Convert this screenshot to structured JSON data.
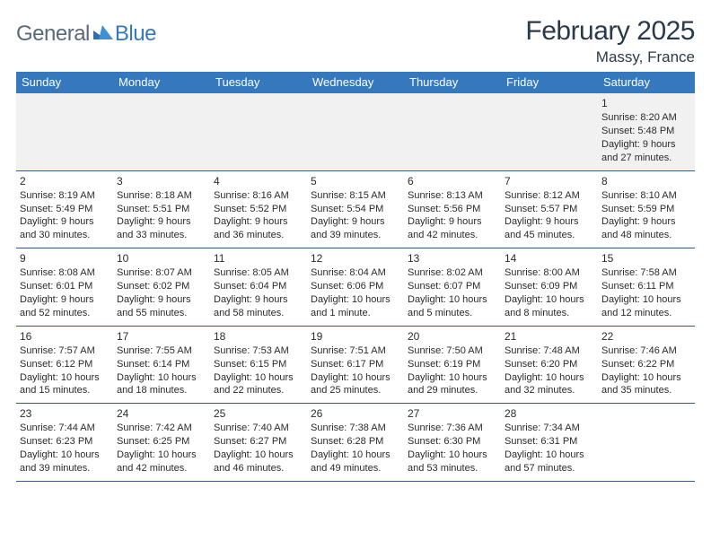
{
  "logo": {
    "part1": "General",
    "part2": "Blue"
  },
  "title": "February 2025",
  "location": "Massy, France",
  "colors": {
    "header_bg": "#3578bd",
    "header_text": "#ffffff",
    "row_border": "#3a5a8a",
    "first_row_bg": "#f1f1f1",
    "text": "#2a2a2a",
    "logo_gray": "#5a6a78",
    "logo_blue": "#3578bd"
  },
  "day_headers": [
    "Sunday",
    "Monday",
    "Tuesday",
    "Wednesday",
    "Thursday",
    "Friday",
    "Saturday"
  ],
  "weeks": [
    [
      null,
      null,
      null,
      null,
      null,
      null,
      {
        "n": "1",
        "sunrise": "Sunrise: 8:20 AM",
        "sunset": "Sunset: 5:48 PM",
        "day1": "Daylight: 9 hours",
        "day2": "and 27 minutes."
      }
    ],
    [
      {
        "n": "2",
        "sunrise": "Sunrise: 8:19 AM",
        "sunset": "Sunset: 5:49 PM",
        "day1": "Daylight: 9 hours",
        "day2": "and 30 minutes."
      },
      {
        "n": "3",
        "sunrise": "Sunrise: 8:18 AM",
        "sunset": "Sunset: 5:51 PM",
        "day1": "Daylight: 9 hours",
        "day2": "and 33 minutes."
      },
      {
        "n": "4",
        "sunrise": "Sunrise: 8:16 AM",
        "sunset": "Sunset: 5:52 PM",
        "day1": "Daylight: 9 hours",
        "day2": "and 36 minutes."
      },
      {
        "n": "5",
        "sunrise": "Sunrise: 8:15 AM",
        "sunset": "Sunset: 5:54 PM",
        "day1": "Daylight: 9 hours",
        "day2": "and 39 minutes."
      },
      {
        "n": "6",
        "sunrise": "Sunrise: 8:13 AM",
        "sunset": "Sunset: 5:56 PM",
        "day1": "Daylight: 9 hours",
        "day2": "and 42 minutes."
      },
      {
        "n": "7",
        "sunrise": "Sunrise: 8:12 AM",
        "sunset": "Sunset: 5:57 PM",
        "day1": "Daylight: 9 hours",
        "day2": "and 45 minutes."
      },
      {
        "n": "8",
        "sunrise": "Sunrise: 8:10 AM",
        "sunset": "Sunset: 5:59 PM",
        "day1": "Daylight: 9 hours",
        "day2": "and 48 minutes."
      }
    ],
    [
      {
        "n": "9",
        "sunrise": "Sunrise: 8:08 AM",
        "sunset": "Sunset: 6:01 PM",
        "day1": "Daylight: 9 hours",
        "day2": "and 52 minutes."
      },
      {
        "n": "10",
        "sunrise": "Sunrise: 8:07 AM",
        "sunset": "Sunset: 6:02 PM",
        "day1": "Daylight: 9 hours",
        "day2": "and 55 minutes."
      },
      {
        "n": "11",
        "sunrise": "Sunrise: 8:05 AM",
        "sunset": "Sunset: 6:04 PM",
        "day1": "Daylight: 9 hours",
        "day2": "and 58 minutes."
      },
      {
        "n": "12",
        "sunrise": "Sunrise: 8:04 AM",
        "sunset": "Sunset: 6:06 PM",
        "day1": "Daylight: 10 hours",
        "day2": "and 1 minute."
      },
      {
        "n": "13",
        "sunrise": "Sunrise: 8:02 AM",
        "sunset": "Sunset: 6:07 PM",
        "day1": "Daylight: 10 hours",
        "day2": "and 5 minutes."
      },
      {
        "n": "14",
        "sunrise": "Sunrise: 8:00 AM",
        "sunset": "Sunset: 6:09 PM",
        "day1": "Daylight: 10 hours",
        "day2": "and 8 minutes."
      },
      {
        "n": "15",
        "sunrise": "Sunrise: 7:58 AM",
        "sunset": "Sunset: 6:11 PM",
        "day1": "Daylight: 10 hours",
        "day2": "and 12 minutes."
      }
    ],
    [
      {
        "n": "16",
        "sunrise": "Sunrise: 7:57 AM",
        "sunset": "Sunset: 6:12 PM",
        "day1": "Daylight: 10 hours",
        "day2": "and 15 minutes."
      },
      {
        "n": "17",
        "sunrise": "Sunrise: 7:55 AM",
        "sunset": "Sunset: 6:14 PM",
        "day1": "Daylight: 10 hours",
        "day2": "and 18 minutes."
      },
      {
        "n": "18",
        "sunrise": "Sunrise: 7:53 AM",
        "sunset": "Sunset: 6:15 PM",
        "day1": "Daylight: 10 hours",
        "day2": "and 22 minutes."
      },
      {
        "n": "19",
        "sunrise": "Sunrise: 7:51 AM",
        "sunset": "Sunset: 6:17 PM",
        "day1": "Daylight: 10 hours",
        "day2": "and 25 minutes."
      },
      {
        "n": "20",
        "sunrise": "Sunrise: 7:50 AM",
        "sunset": "Sunset: 6:19 PM",
        "day1": "Daylight: 10 hours",
        "day2": "and 29 minutes."
      },
      {
        "n": "21",
        "sunrise": "Sunrise: 7:48 AM",
        "sunset": "Sunset: 6:20 PM",
        "day1": "Daylight: 10 hours",
        "day2": "and 32 minutes."
      },
      {
        "n": "22",
        "sunrise": "Sunrise: 7:46 AM",
        "sunset": "Sunset: 6:22 PM",
        "day1": "Daylight: 10 hours",
        "day2": "and 35 minutes."
      }
    ],
    [
      {
        "n": "23",
        "sunrise": "Sunrise: 7:44 AM",
        "sunset": "Sunset: 6:23 PM",
        "day1": "Daylight: 10 hours",
        "day2": "and 39 minutes."
      },
      {
        "n": "24",
        "sunrise": "Sunrise: 7:42 AM",
        "sunset": "Sunset: 6:25 PM",
        "day1": "Daylight: 10 hours",
        "day2": "and 42 minutes."
      },
      {
        "n": "25",
        "sunrise": "Sunrise: 7:40 AM",
        "sunset": "Sunset: 6:27 PM",
        "day1": "Daylight: 10 hours",
        "day2": "and 46 minutes."
      },
      {
        "n": "26",
        "sunrise": "Sunrise: 7:38 AM",
        "sunset": "Sunset: 6:28 PM",
        "day1": "Daylight: 10 hours",
        "day2": "and 49 minutes."
      },
      {
        "n": "27",
        "sunrise": "Sunrise: 7:36 AM",
        "sunset": "Sunset: 6:30 PM",
        "day1": "Daylight: 10 hours",
        "day2": "and 53 minutes."
      },
      {
        "n": "28",
        "sunrise": "Sunrise: 7:34 AM",
        "sunset": "Sunset: 6:31 PM",
        "day1": "Daylight: 10 hours",
        "day2": "and 57 minutes."
      },
      null
    ]
  ]
}
